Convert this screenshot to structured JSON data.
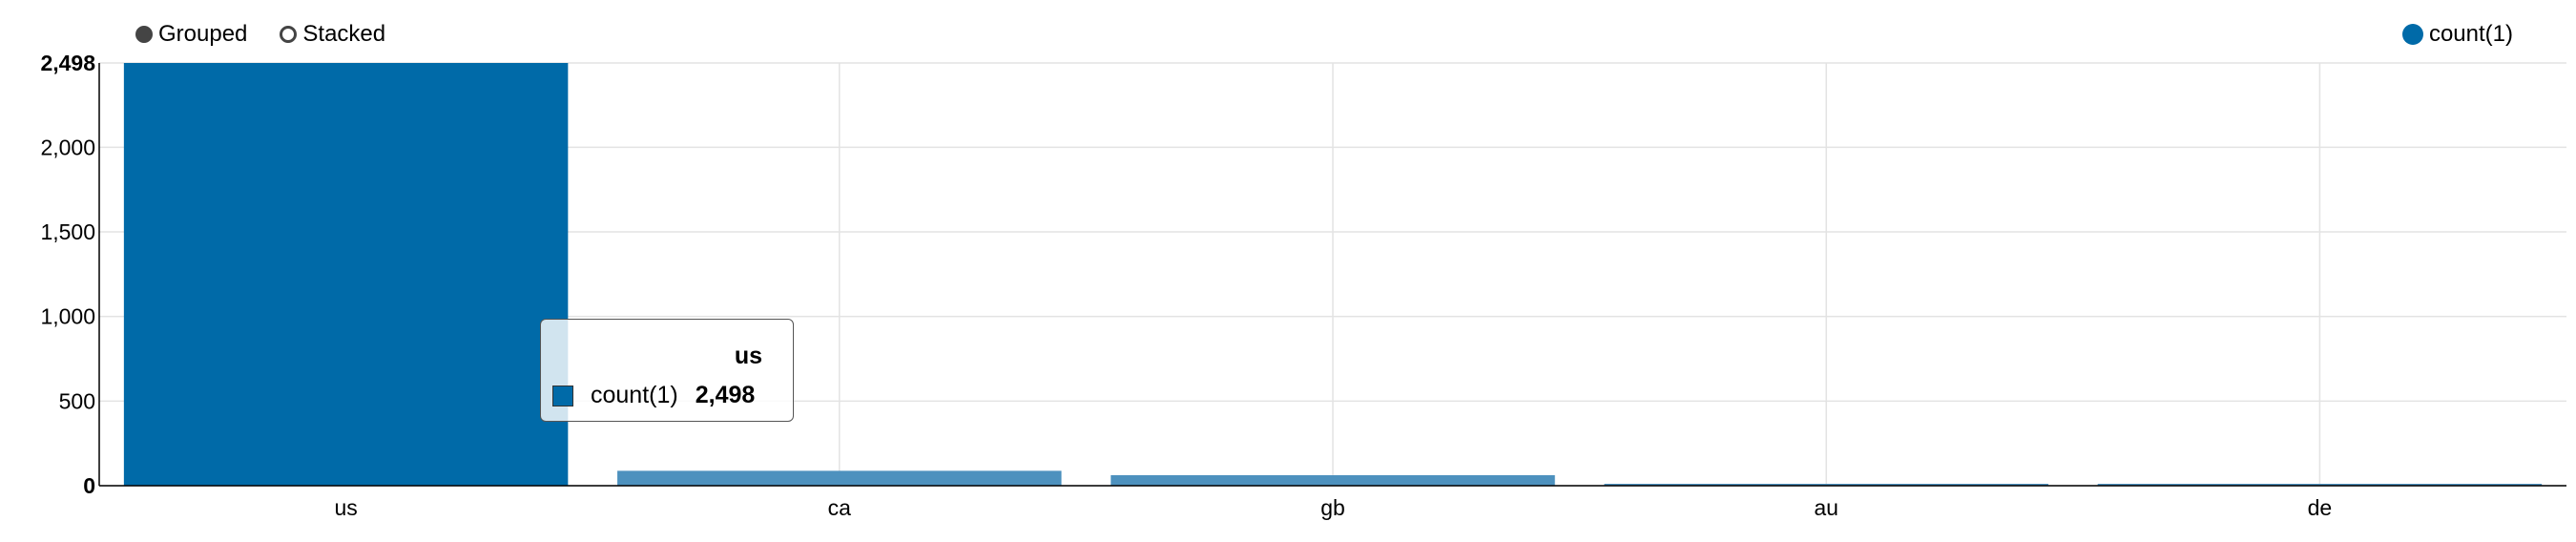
{
  "controls": {
    "grouped_label": "Grouped",
    "stacked_label": "Stacked",
    "selected": "grouped"
  },
  "legend": {
    "label": "count(1)",
    "color": "#006aa8"
  },
  "tooltip": {
    "title": "us",
    "series": "count(1)",
    "value": "2,498"
  },
  "chart_data": {
    "type": "bar",
    "categories": [
      "us",
      "ca",
      "gb",
      "au",
      "de"
    ],
    "series": [
      {
        "name": "count(1)",
        "values": [
          2498,
          88,
          62,
          10,
          8
        ]
      }
    ],
    "ylim": [
      0,
      2498
    ],
    "yticks": [
      0,
      500,
      1000,
      1500,
      2000,
      2498
    ],
    "ytick_labels": [
      "0",
      "500",
      "1,000",
      "1,500",
      "2,000",
      "2,498"
    ],
    "highlighted_category": "us",
    "colors": {
      "highlight": "#006aa8",
      "bar": "#4d91be",
      "grid": "#e3e3e3",
      "axis": "#000000"
    },
    "grid": true,
    "legend_position": "top-right"
  }
}
